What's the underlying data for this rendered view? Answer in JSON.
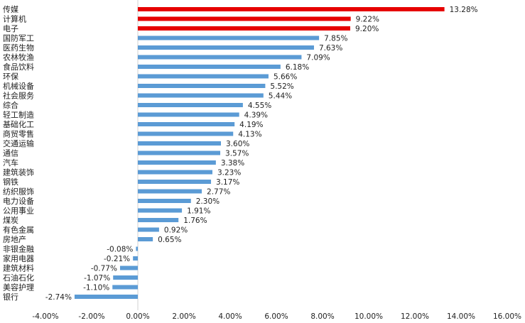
{
  "chart_data": {
    "type": "bar",
    "orientation": "horizontal",
    "title": "",
    "xlabel": "",
    "ylabel": "",
    "xlim": [
      -4,
      16
    ],
    "x_ticks": [
      -4,
      -2,
      0,
      2,
      4,
      6,
      8,
      10,
      12,
      14,
      16
    ],
    "x_tick_labels": [
      "-4.00%",
      "-2.00%",
      "0.00%",
      "2.00%",
      "4.00%",
      "6.00%",
      "8.00%",
      "10.00%",
      "12.00%",
      "14.00%",
      "16.00%"
    ],
    "grid": false,
    "legend": "none",
    "categories": [
      "传媒",
      "计算机",
      "电子",
      "国防军工",
      "医药生物",
      "农林牧渔",
      "食品饮料",
      "环保",
      "机械设备",
      "社会服务",
      "综合",
      "轻工制造",
      "基础化工",
      "商贸零售",
      "交通运输",
      "通信",
      "汽车",
      "建筑装饰",
      "钢铁",
      "纺织服饰",
      "电力设备",
      "公用事业",
      "煤炭",
      "有色金属",
      "房地产",
      "非银金融",
      "家用电器",
      "建筑材料",
      "石油石化",
      "美容护理",
      "银行"
    ],
    "values": [
      13.28,
      9.22,
      9.2,
      7.85,
      7.63,
      7.09,
      6.18,
      5.66,
      5.52,
      5.44,
      4.55,
      4.39,
      4.19,
      4.13,
      3.6,
      3.57,
      3.38,
      3.23,
      3.17,
      2.77,
      2.3,
      1.91,
      1.76,
      0.92,
      0.65,
      -0.08,
      -0.21,
      -0.77,
      -1.07,
      -1.1,
      -2.74
    ],
    "value_labels": [
      "13.28%",
      "9.22%",
      "9.20%",
      "7.85%",
      "7.63%",
      "7.09%",
      "6.18%",
      "5.66%",
      "5.52%",
      "5.44%",
      "4.55%",
      "4.39%",
      "4.19%",
      "4.13%",
      "3.60%",
      "3.57%",
      "3.38%",
      "3.23%",
      "3.17%",
      "2.77%",
      "2.30%",
      "1.91%",
      "1.76%",
      "0.92%",
      "0.65%",
      "-0.08%",
      "-0.21%",
      "-0.77%",
      "-1.07%",
      "-1.10%",
      "-2.74%"
    ],
    "highlight_top_n": 3,
    "colors": {
      "highlight": "#e60000",
      "default": "#5b9bd5",
      "axis": "#d0d0d0"
    }
  }
}
